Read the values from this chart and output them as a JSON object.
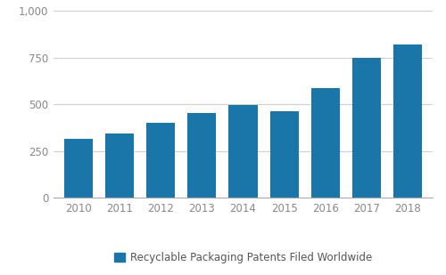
{
  "years": [
    2010,
    2011,
    2012,
    2013,
    2014,
    2015,
    2016,
    2017,
    2018
  ],
  "values": [
    315,
    345,
    400,
    455,
    495,
    465,
    590,
    750,
    820
  ],
  "bar_color": "#1A76A8",
  "ylim": [
    0,
    1000
  ],
  "yticks": [
    0,
    250,
    500,
    750,
    1000
  ],
  "ytick_labels": [
    "0",
    "250",
    "500",
    "750",
    "1,000"
  ],
  "legend_label": "Recyclable Packaging Patents Filed Worldwide",
  "background_color": "#ffffff",
  "grid_color": "#d0d0d0",
  "bar_width": 0.7,
  "tick_fontsize": 8.5,
  "legend_fontsize": 8.5,
  "tick_color": "#888888"
}
